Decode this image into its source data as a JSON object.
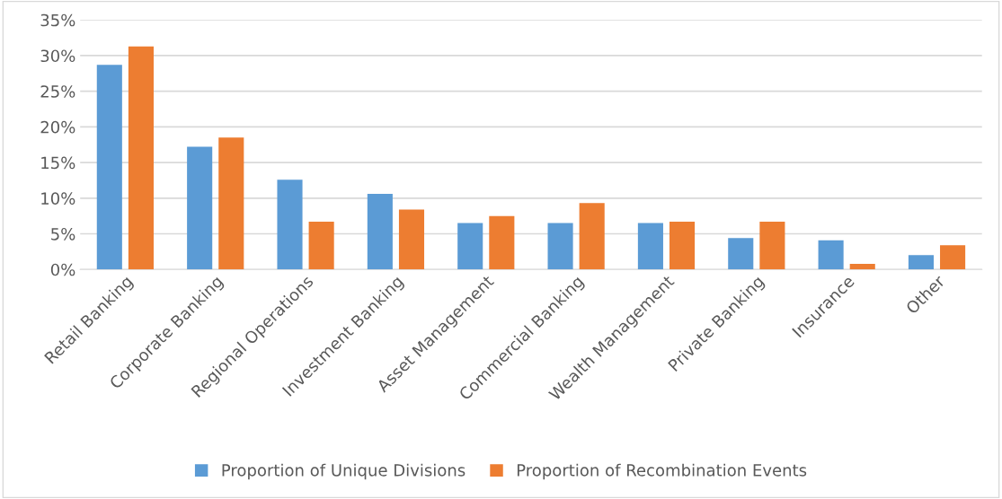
{
  "chart_data": {
    "type": "bar",
    "categories": [
      "Retail Banking",
      "Corporate Banking",
      "Regional Operations",
      "Investment Banking",
      "Asset Management",
      "Commercial Banking",
      "Wealth Management",
      "Private Banking",
      "Insurance",
      "Other"
    ],
    "series": [
      {
        "name": "Proportion of Unique Divisions",
        "color": "#5b9bd5",
        "values": [
          28.7,
          17.2,
          12.6,
          10.6,
          6.5,
          6.5,
          6.5,
          4.4,
          4.1,
          2.0
        ]
      },
      {
        "name": "Proportion of Recombination Events",
        "color": "#ed7d31",
        "values": [
          31.3,
          18.5,
          6.7,
          8.4,
          7.5,
          9.3,
          6.7,
          6.7,
          0.8,
          3.4
        ]
      }
    ],
    "ylim": [
      0,
      35
    ],
    "yticks": [
      {
        "value": 0,
        "label": "0%"
      },
      {
        "value": 5,
        "label": "5%"
      },
      {
        "value": 10,
        "label": "10%"
      },
      {
        "value": 15,
        "label": "15%"
      },
      {
        "value": 20,
        "label": "20%"
      },
      {
        "value": 25,
        "label": "25%"
      },
      {
        "value": 30,
        "label": "30%"
      },
      {
        "value": 35,
        "label": "35%"
      }
    ],
    "grid": "y",
    "legend": "bottom"
  }
}
